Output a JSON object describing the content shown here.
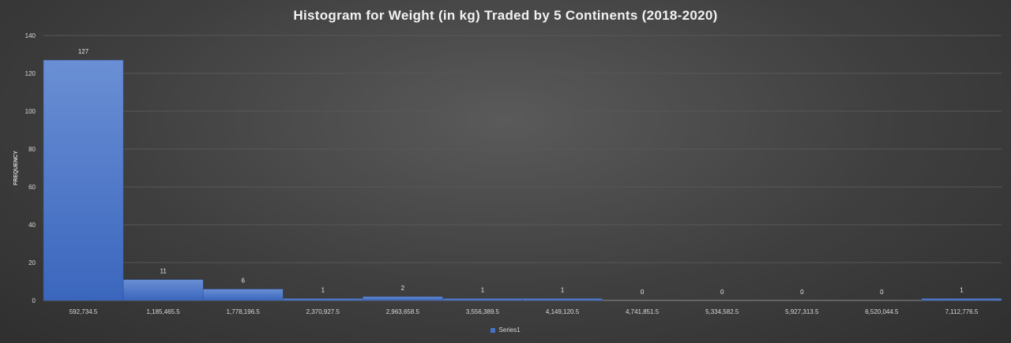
{
  "chart_data": {
    "type": "bar",
    "title": "Histogram for Weight (in kg) Traded by 5 Continents (2018-2020)",
    "xlabel": "",
    "ylabel": "FREQUENCY",
    "categories": [
      "592,734.5",
      "1,185,465.5",
      "1,778,196.5",
      "2,370,927.5",
      "2,963,658.5",
      "3,556,389.5",
      "4,149,120.5",
      "4,741,851.5",
      "5,334,582.5",
      "5,927,313.5",
      "6,520,044.5",
      "7,112,776.5"
    ],
    "series": [
      {
        "name": "Series1",
        "values": [
          127,
          11,
          6,
          1,
          2,
          1,
          1,
          0,
          0,
          0,
          0,
          1
        ]
      }
    ],
    "ylim": [
      0,
      140
    ],
    "yticks": [
      0,
      20,
      40,
      60,
      80,
      100,
      120,
      140
    ],
    "grid": true,
    "legend_position": "bottom",
    "bar_color": "#4472c4",
    "data_labels": true
  }
}
